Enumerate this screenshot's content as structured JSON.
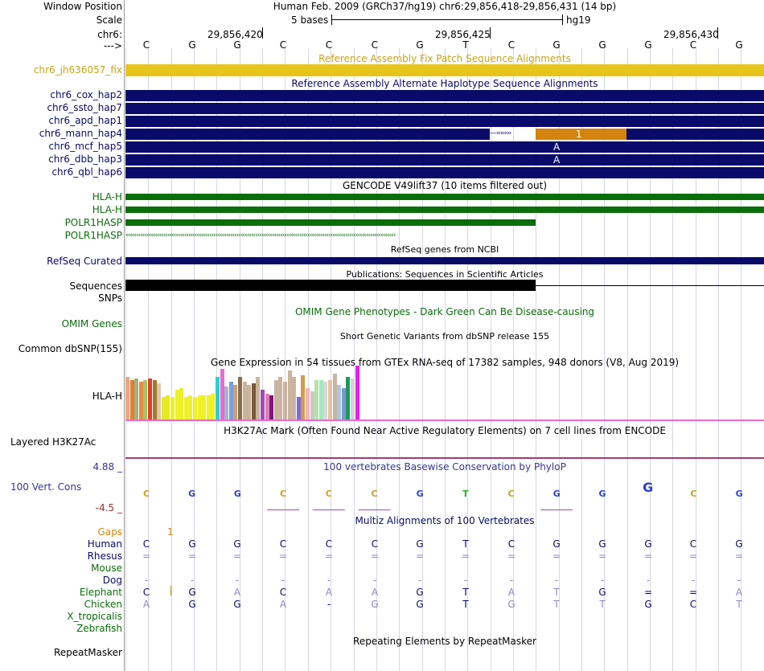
{
  "header": {
    "window_position_label": "Window Position",
    "window_position_value": "Human Feb. 2009 (GRCh37/hg19)   chr6:29,856,418-29,856,431 (14 bp)",
    "scale_label": "Scale",
    "scale_value": "5 bases",
    "scale_assembly": "hg19",
    "chrom_label": "chr6:",
    "strand_label": "--->",
    "coords": [
      "29,856,420",
      "29,856,425",
      "29,856,430"
    ],
    "bases": [
      "C",
      "G",
      "G",
      "C",
      "C",
      "C",
      "G",
      "T",
      "C",
      "G",
      "G",
      "G",
      "C",
      "G"
    ]
  },
  "tracks": {
    "fix_patch": {
      "title": "Reference Assembly Fix Patch Sequence Alignments",
      "label": "chr6_jh636057_fix",
      "color": "#e6c41a"
    },
    "alt_haplotype": {
      "title": "Reference Assembly Alternate Haplotype Sequence Alignments",
      "items": [
        {
          "label": "chr6_cox_hap2",
          "text": ""
        },
        {
          "label": "chr6_ssto_hap7",
          "text": ""
        },
        {
          "label": "chr6_apd_hap1",
          "text": ""
        },
        {
          "label": "chr6_mann_hap4",
          "text": "1"
        },
        {
          "label": "chr6_mcf_hap5",
          "text": "A"
        },
        {
          "label": "chr6_dbb_hap3",
          "text": "A"
        },
        {
          "label": "chr6_qbl_hap6",
          "text": ""
        }
      ],
      "color": "#0a0a6b"
    },
    "gencode": {
      "title": "GENCODE V49lift37 (10 items filtered out)",
      "items": [
        {
          "label": "HLA-H"
        },
        {
          "label": "HLA-H"
        },
        {
          "label": "POLR1HASP"
        },
        {
          "label": "POLR1HASP"
        }
      ],
      "color": "#0b6e0b"
    },
    "refseq": {
      "title": "RefSeq genes from NCBI",
      "label": "RefSeq Curated"
    },
    "publications": {
      "title": "Publications: Sequences in Scientific Articles",
      "label": "Sequences"
    },
    "snps": {
      "label": "SNPs"
    },
    "omim": {
      "title": "OMIM Gene Phenotypes - Dark Green Can Be Disease-causing",
      "label": "OMIM Genes"
    },
    "dbsnp": {
      "title": "Short Genetic Variants from dbSNP release 155",
      "label": "Common dbSNP(155)"
    },
    "gtex": {
      "title": "Gene Expression in 54 tissues from GTEx RNA-seq of 17382 samples, 948 donors (V8, Aug 2019)",
      "label": "HLA-H",
      "bars": [
        {
          "value": 52,
          "color": "#f3a47c"
        },
        {
          "value": 48,
          "color": "#ea7a2f"
        },
        {
          "value": 50,
          "color": "#9fb47e"
        },
        {
          "value": 46,
          "color": "#e98a3c"
        },
        {
          "value": 48,
          "color": "#a3c46f"
        },
        {
          "value": 50,
          "color": "#e23a2b"
        },
        {
          "value": 48,
          "color": "#a57a2f"
        },
        {
          "value": 44,
          "color": "#dec8aa"
        },
        {
          "value": 28,
          "color": "#e6ea22"
        },
        {
          "value": 30,
          "color": "#e6ea22"
        },
        {
          "value": 28,
          "color": "#eef02a"
        },
        {
          "value": 36,
          "color": "#eef02a"
        },
        {
          "value": 38,
          "color": "#eef02a"
        },
        {
          "value": 28,
          "color": "#eef02a"
        },
        {
          "value": 30,
          "color": "#eef02a"
        },
        {
          "value": 28,
          "color": "#eef02a"
        },
        {
          "value": 30,
          "color": "#eef02a"
        },
        {
          "value": 30,
          "color": "#eef02a"
        },
        {
          "value": 30,
          "color": "#eef02a"
        },
        {
          "value": 32,
          "color": "#eef02a"
        },
        {
          "value": 52,
          "color": "#2fcfcf"
        },
        {
          "value": 62,
          "color": "#e86ad6"
        },
        {
          "value": 40,
          "color": "#a8b4c8"
        },
        {
          "value": 46,
          "color": "#7aa0d8"
        },
        {
          "value": 42,
          "color": "#c8a07a"
        },
        {
          "value": 52,
          "color": "#8a6a4a"
        },
        {
          "value": 46,
          "color": "#c8b49a"
        },
        {
          "value": 42,
          "color": "#c8b49a"
        },
        {
          "value": 44,
          "color": "#7a5a3a"
        },
        {
          "value": 52,
          "color": "#c8b49a"
        },
        {
          "value": 36,
          "color": "#a04ab8"
        },
        {
          "value": 32,
          "color": "#e27ab8"
        },
        {
          "value": 30,
          "color": "#7a1a7a"
        },
        {
          "value": 48,
          "color": "#cab4a0"
        },
        {
          "value": 52,
          "color": "#cab4a0"
        },
        {
          "value": 46,
          "color": "#cab4a0"
        },
        {
          "value": 60,
          "color": "#cab4a0"
        },
        {
          "value": 52,
          "color": "#cab4a0"
        },
        {
          "value": 28,
          "color": "#7a6ad8"
        },
        {
          "value": 54,
          "color": "#d49a4a"
        },
        {
          "value": 38,
          "color": "#f4b4b4"
        },
        {
          "value": 34,
          "color": "#c8c8c8"
        },
        {
          "value": 48,
          "color": "#b4e4a4"
        },
        {
          "value": 48,
          "color": "#a4e4c4"
        },
        {
          "value": 46,
          "color": "#d8d8d8"
        },
        {
          "value": 48,
          "color": "#e4c4a4"
        },
        {
          "value": 56,
          "color": "#cab4a0"
        },
        {
          "value": 42,
          "color": "#a8c8e8"
        },
        {
          "value": 38,
          "color": "#7a9ac8"
        },
        {
          "value": 52,
          "color": "#1a9a5a"
        },
        {
          "value": 50,
          "color": "#d4d4d4"
        },
        {
          "value": 66,
          "color": "#ee1aee"
        }
      ]
    },
    "h3k27ac": {
      "title": "H3K27Ac Mark (Often Found Near Active Regulatory Elements) on 7 cell lines from ENCODE",
      "label": "Layered H3K27Ac"
    },
    "phylop": {
      "title": "100 vertebrates Basewise Conservation by PhyloP",
      "label": "100 Vert. Cons",
      "max_label": "4.88 _",
      "min_label": "-4.5 _"
    },
    "multiz": {
      "title": "Multiz Alignments of 100 Vertebrates",
      "gaps_label": "Gaps",
      "gaps_mark": "1",
      "species": [
        {
          "name": "Human",
          "seq": [
            "C",
            "G",
            "G",
            "C",
            "C",
            "C",
            "G",
            "T",
            "C",
            "G",
            "G",
            "G",
            "C",
            "G"
          ]
        },
        {
          "name": "Rhesus",
          "seq": [
            "=",
            "=",
            "=",
            "=",
            "=",
            "=",
            "=",
            "=",
            "=",
            "=",
            "=",
            "=",
            "=",
            "="
          ]
        },
        {
          "name": "Mouse",
          "seq": [
            "",
            "",
            "",
            "",
            "",
            "",
            "",
            "",
            "",
            "",
            "",
            "",
            "",
            ""
          ]
        },
        {
          "name": "Dog",
          "seq": [
            "-",
            "-",
            "-",
            "-",
            "-",
            "-",
            "-",
            "-",
            "-",
            "-",
            "-",
            "-",
            "-",
            "-"
          ]
        },
        {
          "name": "Elephant",
          "seq": [
            "C",
            "G",
            "A",
            "C",
            "A",
            "A",
            "G",
            "T",
            "A",
            "T",
            "G",
            "=",
            "=",
            "A"
          ]
        },
        {
          "name": "Chicken",
          "seq": [
            "A",
            "G",
            "G",
            "A",
            "-",
            "G",
            "G",
            "T",
            "G",
            "T",
            "T",
            "G",
            "C",
            "T"
          ]
        },
        {
          "name": "X_tropicalis",
          "seq": [
            "",
            "",
            "",
            "",
            "",
            "",
            "",
            "",
            "",
            "",
            "",
            "",
            "",
            ""
          ]
        },
        {
          "name": "Zebrafish",
          "seq": [
            "",
            "",
            "",
            "",
            "",
            "",
            "",
            "",
            "",
            "",
            "",
            "",
            "",
            ""
          ]
        }
      ]
    },
    "repeatmasker": {
      "title": "Repeating Elements by RepeatMasker",
      "label": "RepeatMasker"
    }
  },
  "colors": {
    "navy": "#0a0a6b",
    "gold": "#e6c41a",
    "green": "#0b6e0b",
    "orange": "#d4840e",
    "label_blue": "#0a0a6b",
    "phylop": "#353599"
  }
}
